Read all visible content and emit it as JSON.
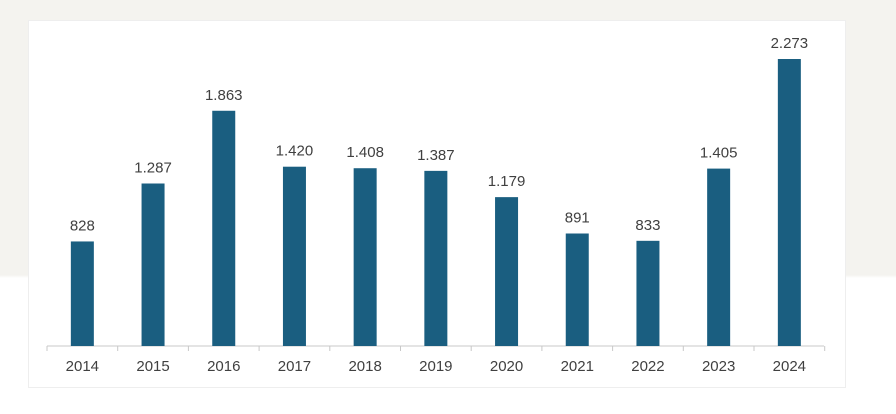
{
  "chart_data": {
    "type": "bar",
    "title": "",
    "xlabel": "",
    "ylabel": "",
    "ylim": [
      0,
      2273
    ],
    "bar_color": "#1a5e80",
    "categories": [
      "2014",
      "2015",
      "2016",
      "2017",
      "2018",
      "2019",
      "2020",
      "2021",
      "2022",
      "2023",
      "2024"
    ],
    "values": [
      828,
      1287,
      1863,
      1420,
      1408,
      1387,
      1179,
      891,
      833,
      1405,
      2273
    ],
    "value_labels": [
      "828",
      "1.287",
      "1.863",
      "1.420",
      "1.408",
      "1.387",
      "1.179",
      "891",
      "833",
      "1.405",
      "2.273"
    ]
  }
}
